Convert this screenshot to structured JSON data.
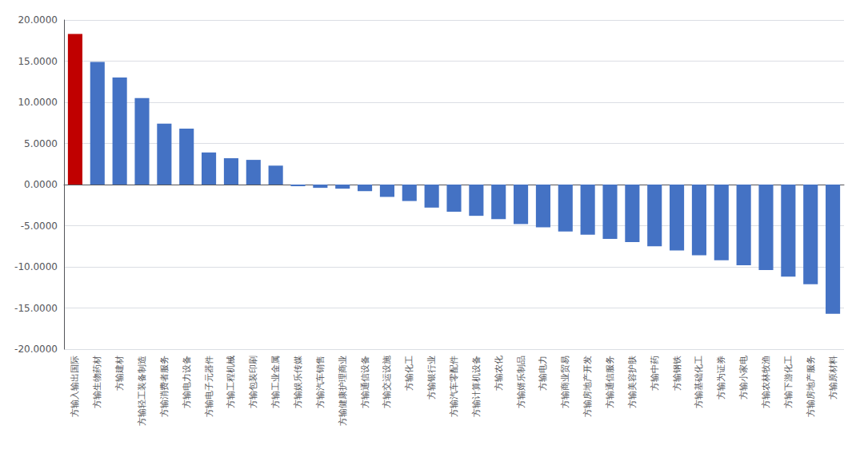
{
  "chart_data": {
    "type": "bar",
    "categories": [
      "方输入输出国际",
      "方输生物药材",
      "方输建材",
      "方输轻工装备制造",
      "方输消费者服务",
      "方输电力设备",
      "方输电子元器件",
      "方输工程机械",
      "方输包装印刷",
      "方输工业金属",
      "方输娱乐传媒",
      "方输汽车销售",
      "方输健康护理商业",
      "方输通信设备",
      "方输交运设施",
      "方输化工",
      "方输银行业",
      "方输汽车零配件",
      "方输计算机设备",
      "方输农化",
      "方输婿乐制品",
      "方输电力",
      "方输商业贸易",
      "方输房地产开发",
      "方输通信服务",
      "方输美容护肤",
      "方输中药",
      "方输钢铁",
      "方输基础化工",
      "方输为证券",
      "方输小家电",
      "方输农林牧渔",
      "方输下游化工",
      "方输房地产服务",
      "方输原材料"
    ],
    "values": [
      18.3,
      14.9,
      13.0,
      10.5,
      7.4,
      6.8,
      3.9,
      3.2,
      3.0,
      2.3,
      -0.2,
      -0.4,
      -0.5,
      -0.8,
      -1.5,
      -2.0,
      -2.8,
      -3.3,
      -3.8,
      -4.2,
      -4.8,
      -5.2,
      -5.7,
      -6.1,
      -6.6,
      -7.0,
      -7.5,
      -8.0,
      -8.6,
      -9.2,
      -9.8,
      -10.4,
      -11.2,
      -12.1,
      -15.7
    ],
    "colors": [
      "#c00000",
      "#4472c4",
      "#4472c4",
      "#4472c4",
      "#4472c4",
      "#4472c4",
      "#4472c4",
      "#4472c4",
      "#4472c4",
      "#4472c4",
      "#4472c4",
      "#4472c4",
      "#4472c4",
      "#4472c4",
      "#4472c4",
      "#4472c4",
      "#4472c4",
      "#4472c4",
      "#4472c4",
      "#4472c4",
      "#4472c4",
      "#4472c4",
      "#4472c4",
      "#4472c4",
      "#4472c4",
      "#4472c4",
      "#4472c4",
      "#4472c4",
      "#4472c4",
      "#4472c4",
      "#4472c4",
      "#4472c4",
      "#4472c4",
      "#4472c4",
      "#4472c4"
    ],
    "ylim": [
      -20,
      20
    ],
    "yticks": [
      {
        "value": -20,
        "label": "-20.0000"
      },
      {
        "value": -15,
        "label": "-15.0000"
      },
      {
        "value": -10,
        "label": "-10.0000"
      },
      {
        "value": -5,
        "label": "-5.0000"
      },
      {
        "value": 0,
        "label": "0.0000"
      },
      {
        "value": 5,
        "label": "5.0000"
      },
      {
        "value": 10,
        "label": "10.0000"
      },
      {
        "value": 15,
        "label": "15.0000"
      },
      {
        "value": 20,
        "label": "20.0000"
      }
    ],
    "grid": true
  }
}
